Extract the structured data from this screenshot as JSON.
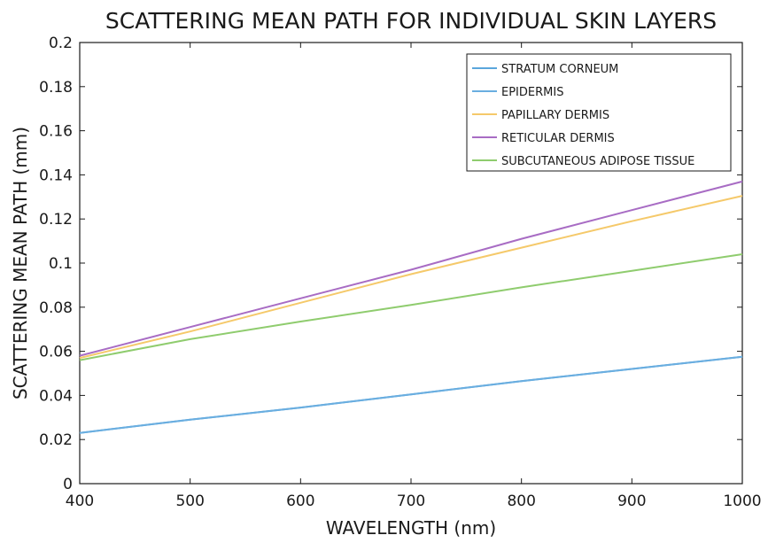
{
  "chart_data": {
    "type": "line",
    "title": "SCATTERING MEAN PATH FOR INDIVIDUAL SKIN LAYERS",
    "xlabel": "WAVELENGTH (nm)",
    "ylabel": "SCATTERING MEAN PATH (mm)",
    "xlim": [
      400,
      1000
    ],
    "ylim": [
      0,
      0.2
    ],
    "xticks": [
      "400",
      "500",
      "600",
      "700",
      "800",
      "900",
      "1000"
    ],
    "yticks": [
      "0",
      "0.02",
      "0.04",
      "0.06",
      "0.08",
      "0.1",
      "0.12",
      "0.14",
      "0.16",
      "0.18",
      "0.2"
    ],
    "grid": false,
    "legend_position": "top-right",
    "x": [
      400,
      500,
      600,
      700,
      800,
      900,
      1000
    ],
    "series": [
      {
        "name": "STRATUM CORNEUM",
        "color": "#5aa6dc",
        "values": [
          0.023,
          0.029,
          0.0345,
          0.0405,
          0.0465,
          0.052,
          0.0575
        ]
      },
      {
        "name": "EPIDERMIS",
        "color": "#6aaee0",
        "values": [
          0.023,
          0.029,
          0.0345,
          0.0405,
          0.0465,
          0.052,
          0.0575
        ]
      },
      {
        "name": "PAPILLARY DERMIS",
        "color": "#f5c96a",
        "values": [
          0.057,
          0.069,
          0.082,
          0.095,
          0.107,
          0.119,
          0.1305
        ]
      },
      {
        "name": "RETICULAR DERMIS",
        "color": "#a86cc4",
        "values": [
          0.058,
          0.071,
          0.084,
          0.097,
          0.111,
          0.124,
          0.137
        ]
      },
      {
        "name": "SUBCUTANEOUS ADIPOSE TISSUE",
        "color": "#8fcc6e",
        "values": [
          0.056,
          0.0655,
          0.0735,
          0.081,
          0.089,
          0.0965,
          0.104
        ]
      }
    ]
  }
}
